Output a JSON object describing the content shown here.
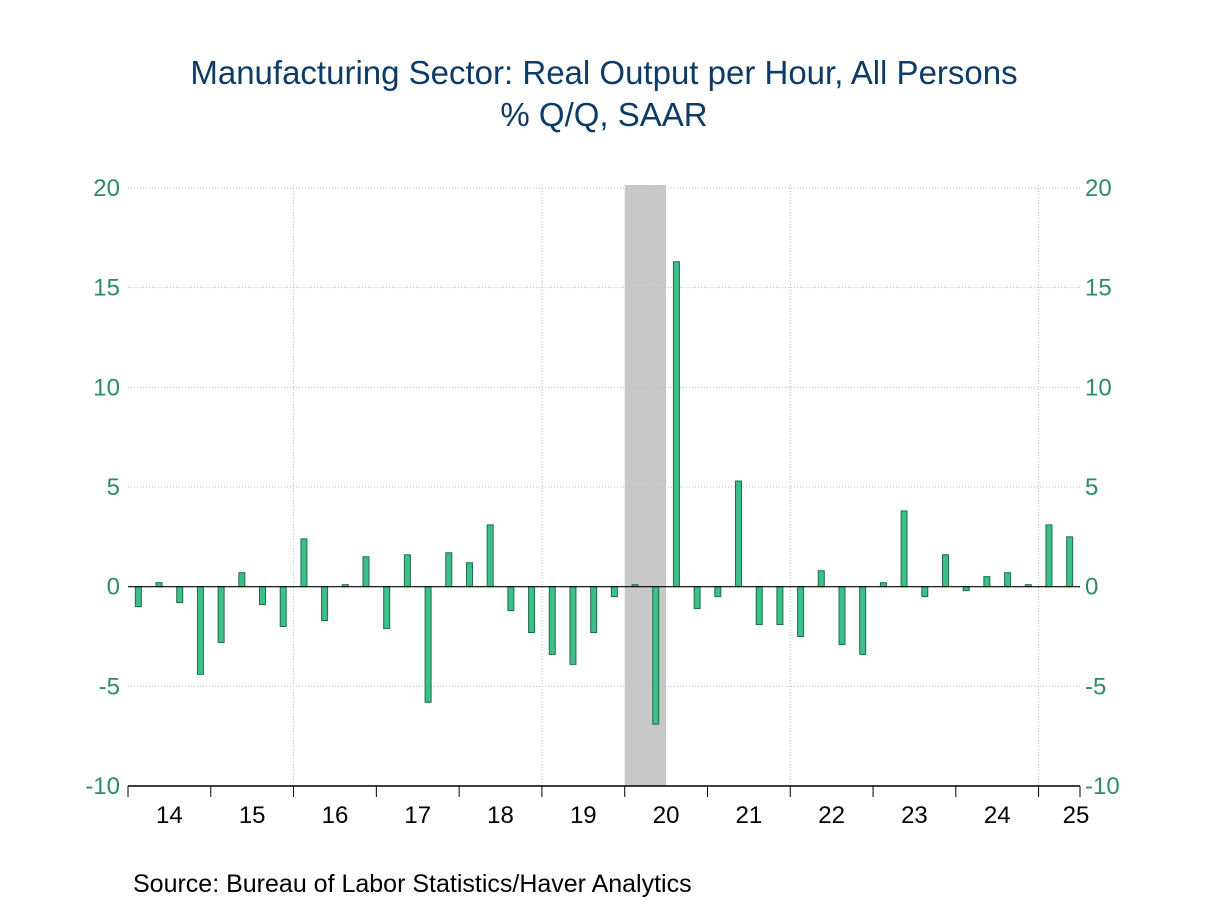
{
  "title_line1": "Manufacturing Sector: Real Output per Hour, All Persons",
  "title_line2": "% Q/Q, SAAR",
  "source": "Source:  Bureau of Labor Statistics/Haver Analytics",
  "colors": {
    "bar_fill": "#3cc08a",
    "bar_stroke": "#1f6b4a",
    "axis_text": "#2e8b6a",
    "title": "#0d3b66",
    "grid": "#9ec5e8",
    "recession": "#c8c8c8"
  },
  "chart_data": {
    "type": "bar",
    "title": "Manufacturing Sector: Real Output per Hour, All Persons",
    "subtitle": "% Q/Q, SAAR",
    "ylim": [
      -10,
      20
    ],
    "yticks": [
      "20",
      "15",
      "10",
      "5",
      "0",
      "-5",
      "-10"
    ],
    "ytick_values": [
      20,
      15,
      10,
      5,
      0,
      -5,
      -10
    ],
    "year_labels": [
      "14",
      "15",
      "16",
      "17",
      "18",
      "19",
      "20",
      "21",
      "22",
      "23",
      "24",
      "25"
    ],
    "grid": true,
    "recession_shading": {
      "start": "2020Q1",
      "end": "2020Q2"
    },
    "categories": [
      "2014Q1",
      "2014Q2",
      "2014Q3",
      "2014Q4",
      "2015Q1",
      "2015Q2",
      "2015Q3",
      "2015Q4",
      "2016Q1",
      "2016Q2",
      "2016Q3",
      "2016Q4",
      "2017Q1",
      "2017Q2",
      "2017Q3",
      "2017Q4",
      "2018Q1",
      "2018Q2",
      "2018Q3",
      "2018Q4",
      "2019Q1",
      "2019Q2",
      "2019Q3",
      "2019Q4",
      "2020Q1",
      "2020Q2",
      "2020Q3",
      "2020Q4",
      "2021Q1",
      "2021Q2",
      "2021Q3",
      "2021Q4",
      "2022Q1",
      "2022Q2",
      "2022Q3",
      "2022Q4",
      "2023Q1",
      "2023Q2",
      "2023Q3",
      "2023Q4",
      "2024Q1",
      "2024Q2",
      "2024Q3",
      "2024Q4",
      "2025Q1",
      "2025Q2"
    ],
    "values": [
      -1.0,
      0.2,
      -0.8,
      -4.4,
      -2.8,
      0.7,
      -0.9,
      -2.0,
      2.4,
      -1.7,
      0.1,
      1.5,
      -2.1,
      1.6,
      -5.8,
      1.7,
      1.2,
      3.1,
      -1.2,
      -2.3,
      -3.4,
      -3.9,
      -2.3,
      -0.5,
      0.1,
      -6.9,
      16.3,
      -1.1,
      -0.5,
      5.3,
      -1.9,
      -1.9,
      -2.5,
      0.8,
      -2.9,
      -3.4,
      0.2,
      3.8,
      -0.5,
      1.6,
      -0.2,
      0.5,
      0.7,
      0.1,
      3.1,
      2.5
    ]
  }
}
